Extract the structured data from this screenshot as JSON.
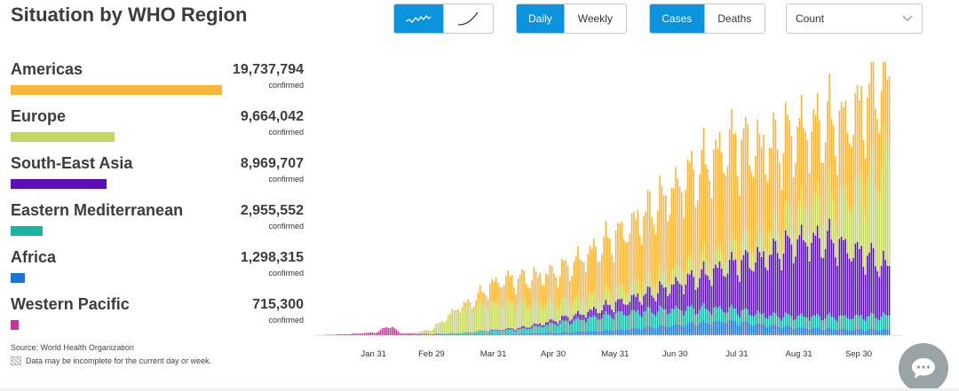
{
  "title": "Situation by WHO Region",
  "controls": {
    "shape_buttons": [
      {
        "icon": "bar-trend-icon",
        "active": true
      },
      {
        "icon": "curve-icon",
        "active": false
      }
    ],
    "period": [
      {
        "label": "Daily",
        "active": true
      },
      {
        "label": "Weekly",
        "active": false
      }
    ],
    "metric": [
      {
        "label": "Cases",
        "active": true
      },
      {
        "label": "Deaths",
        "active": false
      }
    ],
    "select": {
      "value": "Count",
      "icon": "chevron-down-icon"
    },
    "accent": "#0b93dd"
  },
  "regions": [
    {
      "name": "Americas",
      "value": "19,737,794",
      "sub": "confirmed",
      "color": "#f9b739",
      "share": 1.0
    },
    {
      "name": "Europe",
      "value": "9,664,042",
      "sub": "confirmed",
      "color": "#c4d65f",
      "share": 0.49
    },
    {
      "name": "South-East Asia",
      "value": "8,969,707",
      "sub": "confirmed",
      "color": "#5b0fb6",
      "share": 0.454
    },
    {
      "name": "Eastern Mediterranean",
      "value": "2,955,552",
      "sub": "confirmed",
      "color": "#1ab5a1",
      "share": 0.15
    },
    {
      "name": "Africa",
      "value": "1,298,315",
      "sub": "confirmed",
      "color": "#1a76d2",
      "share": 0.066
    },
    {
      "name": "Western Pacific",
      "value": "715,300",
      "sub": "confirmed",
      "color": "#c6369e",
      "share": 0.036
    }
  ],
  "source": "Source: World Health Organization",
  "note": "Data may be incomplete for the current day or week.",
  "chat_icon": "chat-bubble-icon",
  "chart_data": {
    "type": "bar",
    "stacked": true,
    "x_ticks": [
      "Jan 31",
      "Feb 29",
      "Mar 31",
      "Apr 30",
      "May 31",
      "Jun 30",
      "Jul 31",
      "Aug 31",
      "Sep 30"
    ],
    "x_start": "Jan 4",
    "x_end": "Oct 13",
    "y_max": 340000,
    "series": [
      {
        "name": "Western Pacific",
        "color": "#c6369e",
        "points": [
          [
            0,
            100
          ],
          [
            15,
            1500
          ],
          [
            28,
            3500
          ],
          [
            35,
            12000
          ],
          [
            40,
            2500
          ],
          [
            55,
            1500
          ],
          [
            70,
            1200
          ],
          [
            90,
            800
          ],
          [
            120,
            700
          ],
          [
            150,
            900
          ],
          [
            180,
            1000
          ],
          [
            200,
            1500
          ],
          [
            230,
            1400
          ],
          [
            260,
            1200
          ],
          [
            285,
            1000
          ]
        ]
      },
      {
        "name": "Africa",
        "color": "#1a76d2",
        "points": [
          [
            0,
            0
          ],
          [
            70,
            0
          ],
          [
            85,
            600
          ],
          [
            100,
            1200
          ],
          [
            120,
            2500
          ],
          [
            150,
            6000
          ],
          [
            170,
            10000
          ],
          [
            190,
            14000
          ],
          [
            205,
            16000
          ],
          [
            220,
            12000
          ],
          [
            240,
            8000
          ],
          [
            265,
            6000
          ],
          [
            285,
            6000
          ]
        ]
      },
      {
        "name": "Eastern Mediterranean",
        "color": "#1ab5a1",
        "points": [
          [
            0,
            0
          ],
          [
            55,
            200
          ],
          [
            70,
            1500
          ],
          [
            85,
            4000
          ],
          [
            100,
            5000
          ],
          [
            120,
            12000
          ],
          [
            150,
            20000
          ],
          [
            175,
            20000
          ],
          [
            205,
            15000
          ],
          [
            225,
            12000
          ],
          [
            240,
            14000
          ],
          [
            260,
            15000
          ],
          [
            285,
            17000
          ]
        ]
      },
      {
        "name": "South-East Asia",
        "color": "#5b0fb6",
        "points": [
          [
            0,
            0
          ],
          [
            70,
            0
          ],
          [
            90,
            1000
          ],
          [
            110,
            3000
          ],
          [
            130,
            7000
          ],
          [
            150,
            14000
          ],
          [
            170,
            25000
          ],
          [
            195,
            45000
          ],
          [
            220,
            70000
          ],
          [
            240,
            95000
          ],
          [
            255,
            95000
          ],
          [
            265,
            85000
          ],
          [
            275,
            75000
          ],
          [
            285,
            60000
          ]
        ]
      },
      {
        "name": "Europe",
        "color": "#c4d65f",
        "points": [
          [
            0,
            0
          ],
          [
            45,
            100
          ],
          [
            55,
            5000
          ],
          [
            70,
            30000
          ],
          [
            85,
            33000
          ],
          [
            100,
            30000
          ],
          [
            120,
            20000
          ],
          [
            150,
            16000
          ],
          [
            175,
            18000
          ],
          [
            200,
            20000
          ],
          [
            215,
            25000
          ],
          [
            230,
            30000
          ],
          [
            245,
            45000
          ],
          [
            260,
            55000
          ],
          [
            270,
            80000
          ],
          [
            280,
            120000
          ],
          [
            285,
            150000
          ]
        ]
      },
      {
        "name": "Americas",
        "color": "#f9b739",
        "points": [
          [
            0,
            0
          ],
          [
            60,
            0
          ],
          [
            75,
            5000
          ],
          [
            90,
            30000
          ],
          [
            105,
            32000
          ],
          [
            120,
            40000
          ],
          [
            140,
            60000
          ],
          [
            160,
            80000
          ],
          [
            185,
            110000
          ],
          [
            205,
            130000
          ],
          [
            220,
            110000
          ],
          [
            235,
            100000
          ],
          [
            250,
            95000
          ],
          [
            265,
            95000
          ],
          [
            280,
            105000
          ],
          [
            285,
            80000
          ]
        ]
      }
    ]
  }
}
